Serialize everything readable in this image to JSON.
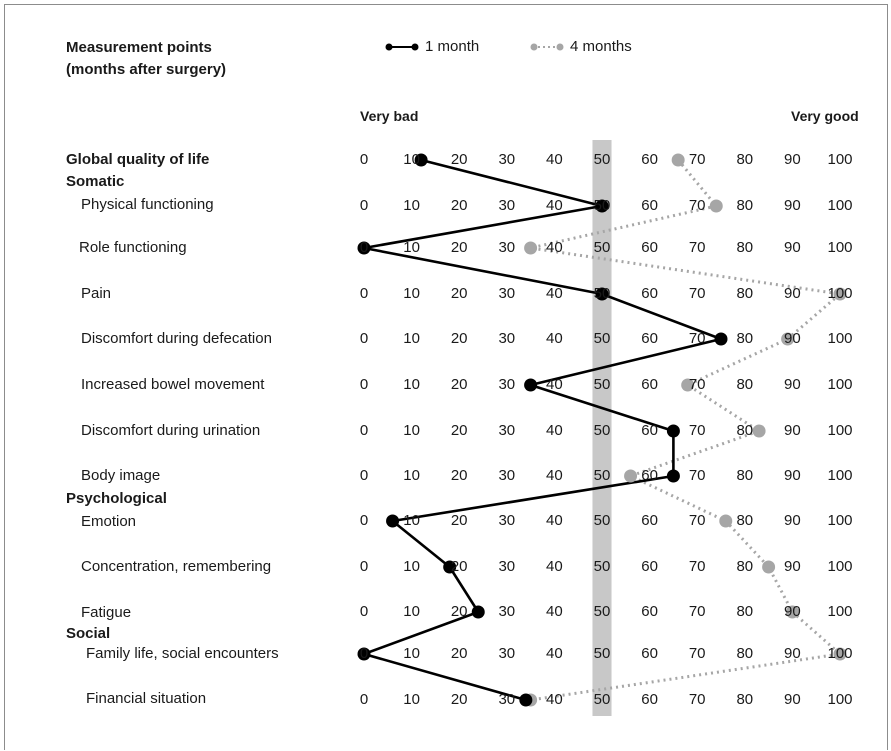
{
  "legend": {
    "title_line1": "Measurement points",
    "title_line2": "(months after surgery)",
    "series_1_label": "1 month",
    "series_2_label": "4 months"
  },
  "scale": {
    "low_label": "Very bad",
    "high_label": "Very good"
  },
  "sections": {
    "global": "Global quality of life",
    "somatic": "Somatic",
    "psychological": "Psychological",
    "social": "Social"
  },
  "colors": {
    "series_1": "#000000",
    "series_2": "#a6a6a6",
    "reference_band": "#c8c8c8"
  },
  "chart_data": {
    "type": "line",
    "orientation": "horizontal-profile",
    "xlim": [
      0,
      100
    ],
    "ticks": [
      0,
      10,
      20,
      30,
      40,
      50,
      60,
      70,
      80,
      90,
      100
    ],
    "reference_band": [
      48,
      52
    ],
    "categories": [
      "Global quality of life",
      "Physical functioning",
      "Role functioning",
      "Pain",
      "Discomfort during defecation",
      "Increased bowel movement",
      "Discomfort during urination",
      "Body image",
      "Emotion",
      "Concentration, remembering",
      "Fatigue",
      "Family life, social encounters",
      "Financial situation"
    ],
    "series": [
      {
        "name": "1 month",
        "values": [
          12,
          50,
          0,
          50,
          75,
          35,
          65,
          65,
          6,
          18,
          24,
          0,
          34
        ]
      },
      {
        "name": "4 months",
        "values": [
          66,
          74,
          35,
          100,
          89,
          68,
          83,
          56,
          76,
          85,
          90,
          100,
          35
        ]
      }
    ]
  }
}
